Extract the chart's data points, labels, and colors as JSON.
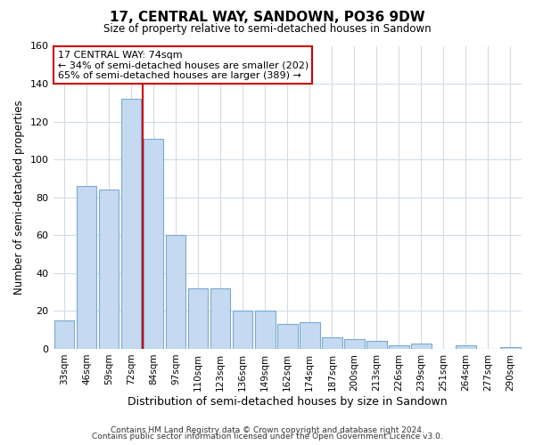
{
  "title": "17, CENTRAL WAY, SANDOWN, PO36 9DW",
  "subtitle": "Size of property relative to semi-detached houses in Sandown",
  "xlabel": "Distribution of semi-detached houses by size in Sandown",
  "ylabel": "Number of semi-detached properties",
  "bar_labels": [
    "33sqm",
    "46sqm",
    "59sqm",
    "72sqm",
    "84sqm",
    "97sqm",
    "110sqm",
    "123sqm",
    "136sqm",
    "149sqm",
    "162sqm",
    "174sqm",
    "187sqm",
    "200sqm",
    "213sqm",
    "226sqm",
    "239sqm",
    "251sqm",
    "264sqm",
    "277sqm",
    "290sqm"
  ],
  "bar_values": [
    15,
    86,
    84,
    132,
    111,
    60,
    32,
    32,
    20,
    20,
    13,
    14,
    6,
    5,
    4,
    2,
    3,
    0,
    2,
    0,
    1
  ],
  "bar_color": "#c5d9f0",
  "bar_edge_color": "#7aaad4",
  "ylim": [
    0,
    160
  ],
  "yticks": [
    0,
    20,
    40,
    60,
    80,
    100,
    120,
    140,
    160
  ],
  "property_line_bar_index": 4,
  "property_line_color": "#cc0000",
  "annotation_title": "17 CENTRAL WAY: 74sqm",
  "annotation_line1": "← 34% of semi-detached houses are smaller (202)",
  "annotation_line2": "65% of semi-detached houses are larger (389) →",
  "annotation_box_color": "#cc0000",
  "footer_line1": "Contains HM Land Registry data © Crown copyright and database right 2024.",
  "footer_line2": "Contains public sector information licensed under the Open Government Licence v3.0.",
  "background_color": "#ffffff",
  "grid_color": "#d0dce8"
}
